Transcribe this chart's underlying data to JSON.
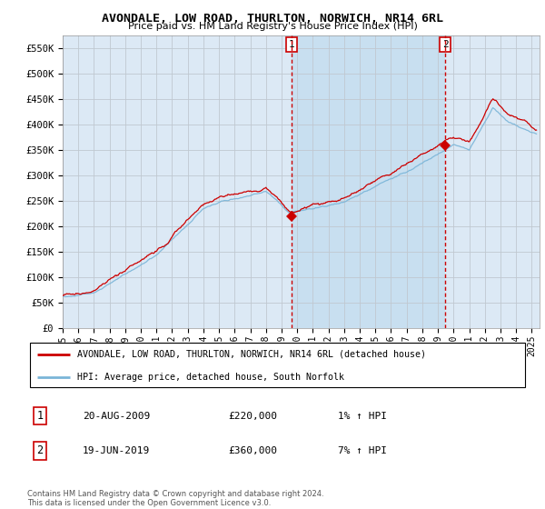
{
  "title": "AVONDALE, LOW ROAD, THURLTON, NORWICH, NR14 6RL",
  "subtitle": "Price paid vs. HM Land Registry's House Price Index (HPI)",
  "legend_line1": "AVONDALE, LOW ROAD, THURLTON, NORWICH, NR14 6RL (detached house)",
  "legend_line2": "HPI: Average price, detached house, South Norfolk",
  "transaction1_date": "20-AUG-2009",
  "transaction1_price": "£220,000",
  "transaction1_hpi": "1% ↑ HPI",
  "transaction2_date": "19-JUN-2019",
  "transaction2_price": "£360,000",
  "transaction2_hpi": "7% ↑ HPI",
  "footer": "Contains HM Land Registry data © Crown copyright and database right 2024.\nThis data is licensed under the Open Government Licence v3.0.",
  "plot_bg_color": "#dce9f5",
  "highlight_bg_color": "#c8dff0",
  "ylim": [
    0,
    575000
  ],
  "yticks": [
    0,
    50000,
    100000,
    150000,
    200000,
    250000,
    300000,
    350000,
    400000,
    450000,
    500000,
    550000
  ],
  "ytick_labels": [
    "£0",
    "£50K",
    "£100K",
    "£150K",
    "£200K",
    "£250K",
    "£300K",
    "£350K",
    "£400K",
    "£450K",
    "£500K",
    "£550K"
  ],
  "transaction1_x": 2009.64,
  "transaction1_y": 220000,
  "transaction2_x": 2019.47,
  "transaction2_y": 360000,
  "vline1_x": 2009.64,
  "vline2_x": 2019.47,
  "hpi_color": "#7ab5d8",
  "price_color": "#cc0000",
  "vline_color": "#cc0000",
  "grid_color": "#c0c8d0",
  "xlim_left": 1995.0,
  "xlim_right": 2025.5
}
